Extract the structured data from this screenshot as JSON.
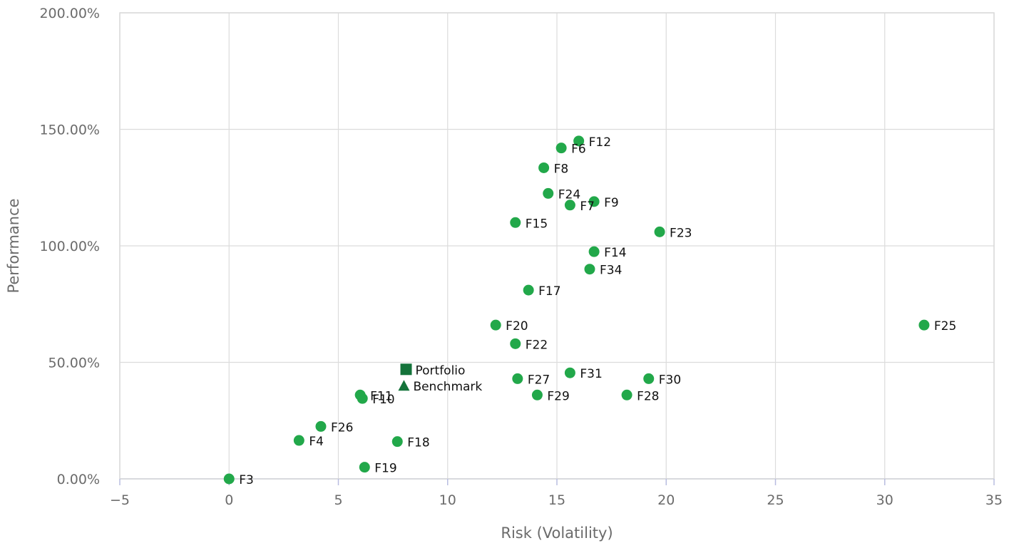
{
  "chart_data": {
    "type": "scatter",
    "xlabel": "Risk (Volatility)",
    "ylabel": "Performance",
    "xlim": [
      -5,
      35
    ],
    "ylim": [
      0,
      200
    ],
    "x_ticks": [
      -5,
      0,
      5,
      10,
      15,
      20,
      25,
      30,
      35
    ],
    "x_tick_labels": [
      "−5",
      "0",
      "5",
      "10",
      "15",
      "20",
      "25",
      "30",
      "35"
    ],
    "y_ticks": [
      0,
      50,
      100,
      150,
      200
    ],
    "y_tick_labels": [
      "0.00%",
      "50.00%",
      "100.00%",
      "150.00%",
      "200.00%"
    ],
    "grid": true,
    "point_color": "#22a84a",
    "special_color": "#14733a",
    "points": [
      {
        "label": "F12",
        "x": 16.0,
        "y": 145.0
      },
      {
        "label": "F6",
        "x": 15.2,
        "y": 142.0
      },
      {
        "label": "F8",
        "x": 14.4,
        "y": 133.5
      },
      {
        "label": "F24",
        "x": 14.6,
        "y": 122.5
      },
      {
        "label": "F9",
        "x": 16.7,
        "y": 119.0
      },
      {
        "label": "F7",
        "x": 15.6,
        "y": 117.5
      },
      {
        "label": "F15",
        "x": 13.1,
        "y": 110.0
      },
      {
        "label": "F23",
        "x": 19.7,
        "y": 106.0
      },
      {
        "label": "F14",
        "x": 16.7,
        "y": 97.5
      },
      {
        "label": "F34",
        "x": 16.5,
        "y": 90.0
      },
      {
        "label": "F17",
        "x": 13.7,
        "y": 81.0
      },
      {
        "label": "F20",
        "x": 12.2,
        "y": 66.0
      },
      {
        "label": "F25",
        "x": 31.8,
        "y": 66.0
      },
      {
        "label": "F22",
        "x": 13.1,
        "y": 58.0
      },
      {
        "label": "F31",
        "x": 15.6,
        "y": 45.5
      },
      {
        "label": "F27",
        "x": 13.2,
        "y": 43.0
      },
      {
        "label": "F30",
        "x": 19.2,
        "y": 43.0
      },
      {
        "label": "F29",
        "x": 14.1,
        "y": 36.0
      },
      {
        "label": "F28",
        "x": 18.2,
        "y": 36.0
      },
      {
        "label": "F11",
        "x": 6.0,
        "y": 36.0
      },
      {
        "label": "F10",
        "x": 6.1,
        "y": 34.5
      },
      {
        "label": "F26",
        "x": 4.2,
        "y": 22.5
      },
      {
        "label": "F4",
        "x": 3.2,
        "y": 16.5
      },
      {
        "label": "F18",
        "x": 7.7,
        "y": 16.0
      },
      {
        "label": "F19",
        "x": 6.2,
        "y": 5.0
      },
      {
        "label": "F3",
        "x": 0.0,
        "y": 0.0
      }
    ],
    "special_points": [
      {
        "label": "Portfolio",
        "x": 8.1,
        "y": 47.0,
        "marker": "square"
      },
      {
        "label": "Benchmark",
        "x": 8.0,
        "y": 40.0,
        "marker": "triangle"
      }
    ]
  }
}
